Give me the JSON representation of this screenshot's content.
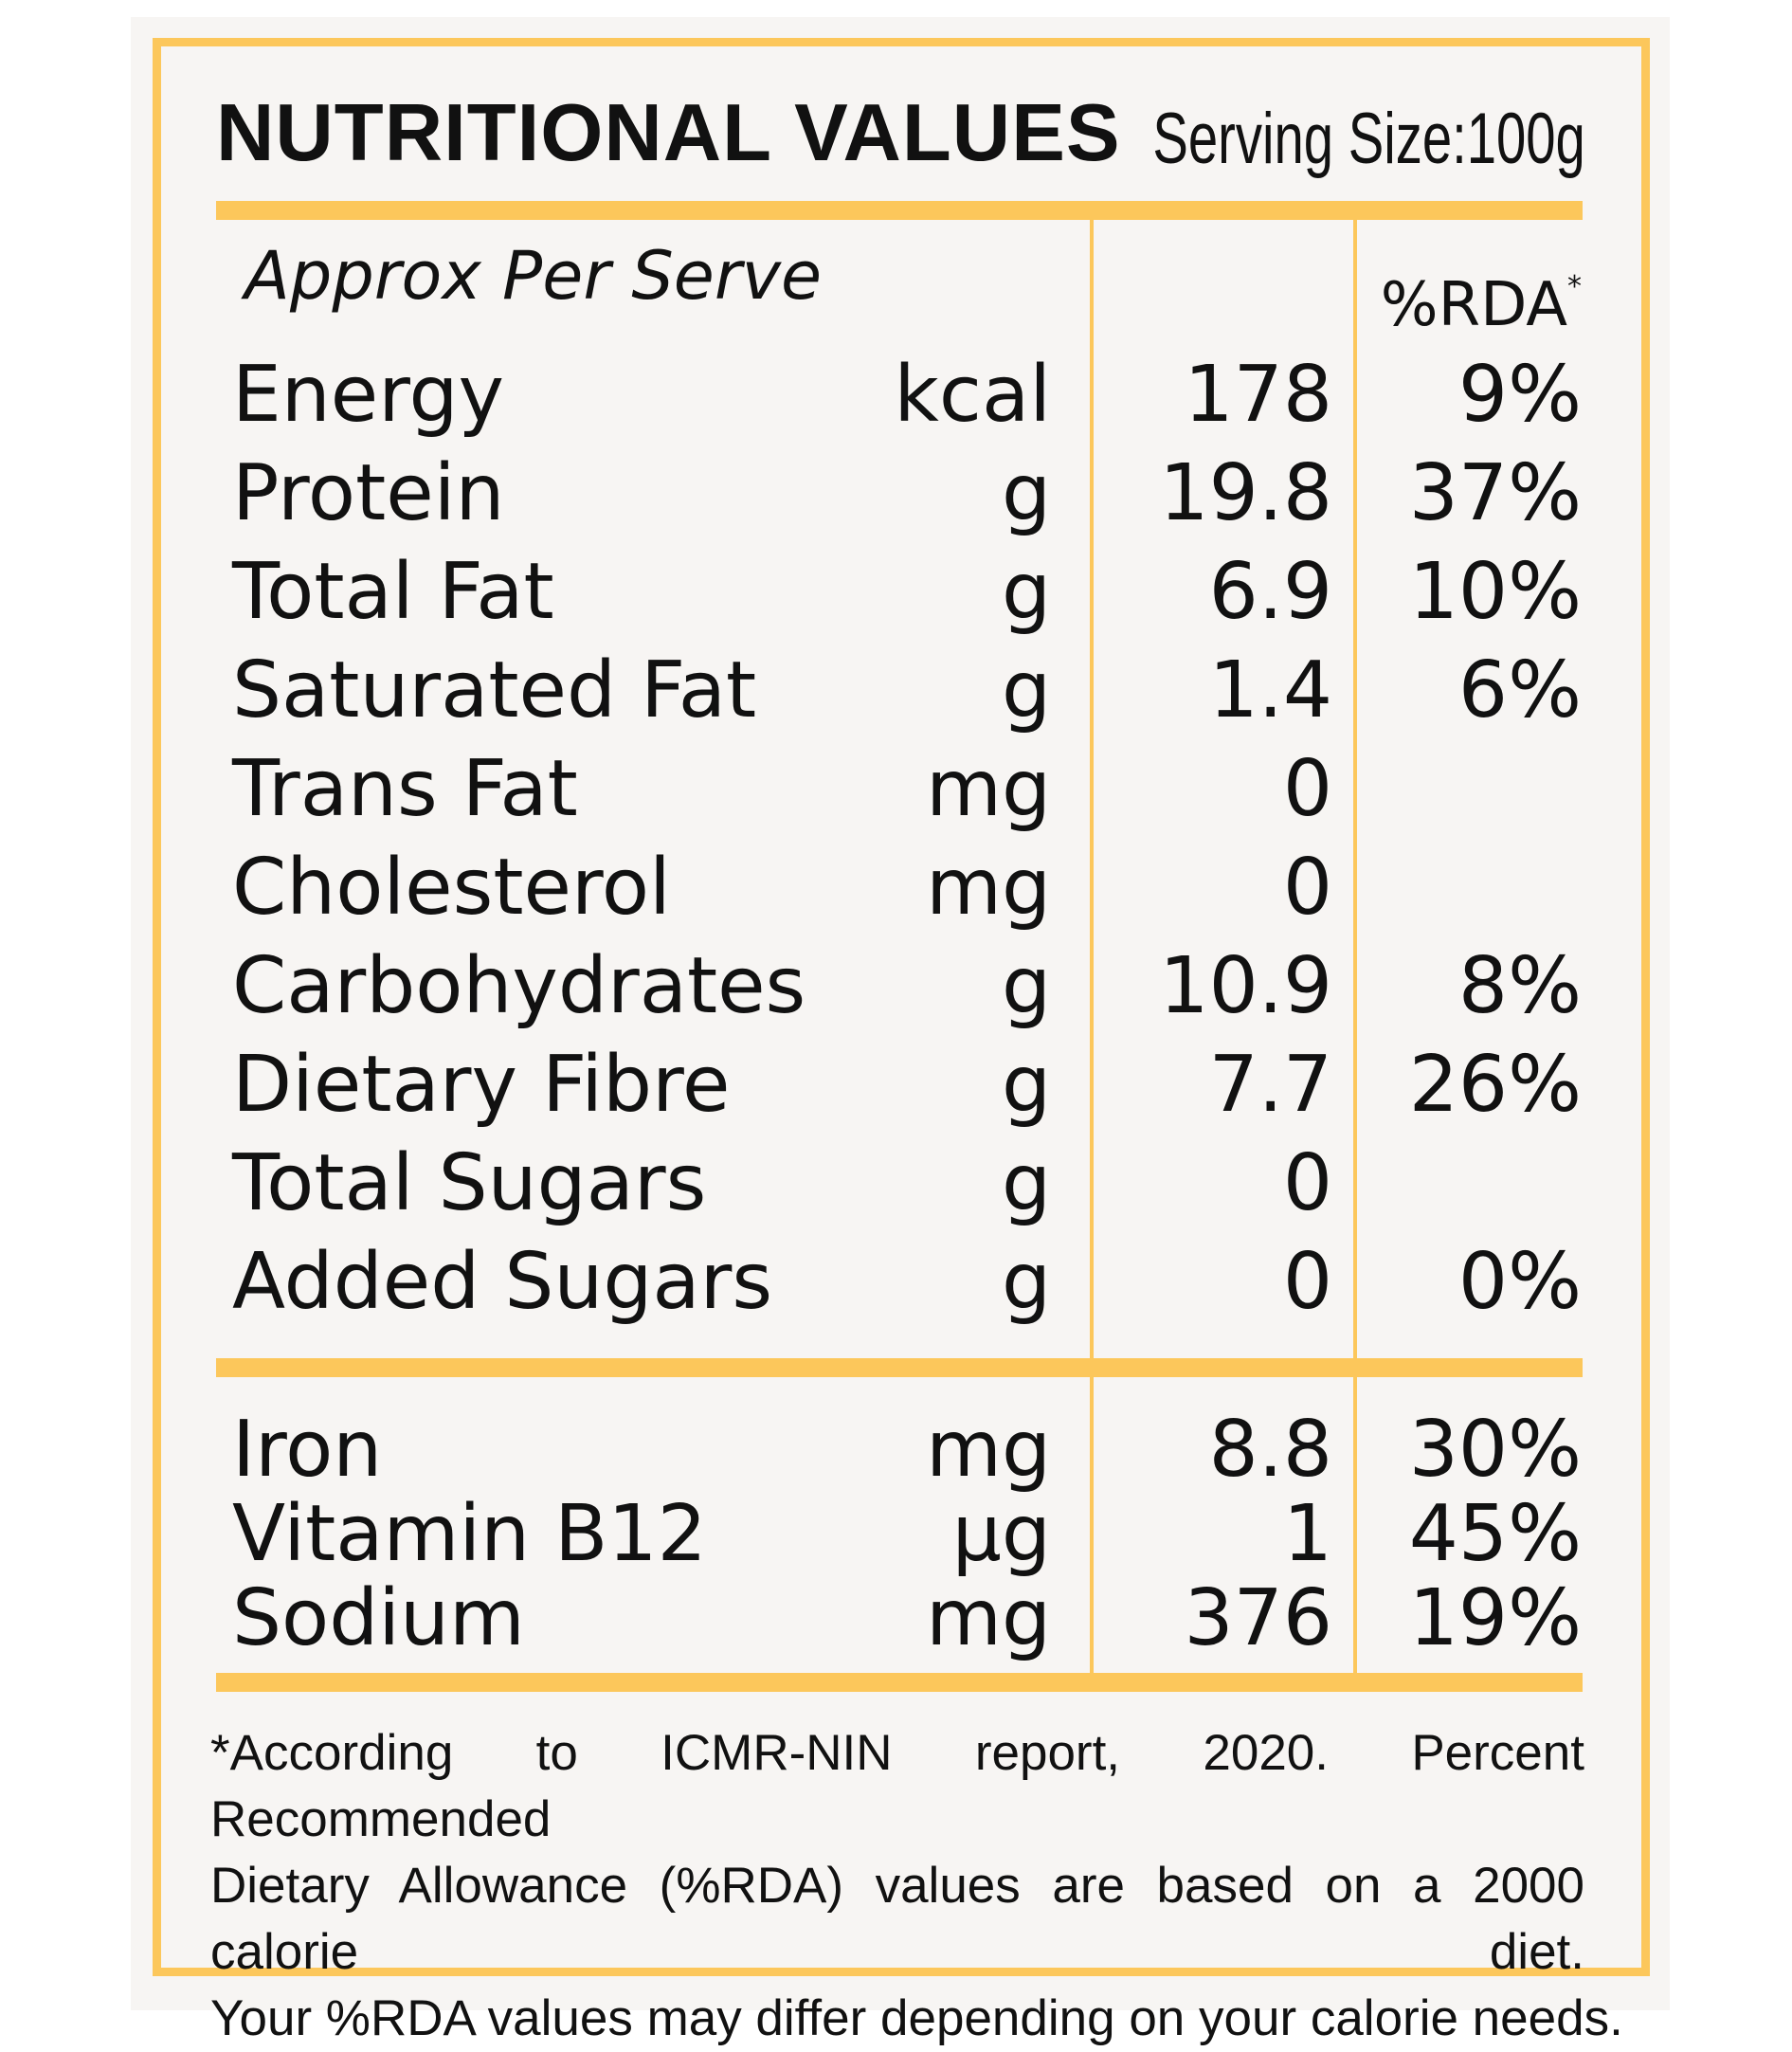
{
  "panel": {
    "title": "NUTRITIONAL VALUES",
    "serving_size": "Serving Size:100g",
    "subheading": "Approx Per Serve",
    "rda_header": "%RDA",
    "rda_marker": "*"
  },
  "nutrients": [
    {
      "name": "Energy",
      "unit": "kcal",
      "value": "178",
      "rda": "9%"
    },
    {
      "name": "Protein",
      "unit": "g",
      "value": "19.8",
      "rda": "37%"
    },
    {
      "name": "Total Fat",
      "unit": "g",
      "value": "6.9",
      "rda": "10%"
    },
    {
      "name": "Saturated Fat",
      "unit": "g",
      "value": "1.4",
      "rda": "6%"
    },
    {
      "name": "Trans Fat",
      "unit": "mg",
      "value": "0",
      "rda": ""
    },
    {
      "name": "Cholesterol",
      "unit": "mg",
      "value": "0",
      "rda": ""
    },
    {
      "name": "Carbohydrates",
      "unit": "g",
      "value": "10.9",
      "rda": "8%"
    },
    {
      "name": "Dietary Fibre",
      "unit": "g",
      "value": "7.7",
      "rda": "26%"
    },
    {
      "name": "Total Sugars",
      "unit": "g",
      "value": "0",
      "rda": ""
    },
    {
      "name": "Added Sugars",
      "unit": "g",
      "value": "0",
      "rda": "0%"
    }
  ],
  "minerals": [
    {
      "name": "Iron",
      "unit": "mg",
      "value": "8.8",
      "rda": "30%"
    },
    {
      "name": "Vitamin B12",
      "unit": "µg",
      "value": "1",
      "rda": "45%"
    },
    {
      "name": "Sodium",
      "unit": "mg",
      "value": "376",
      "rda": "19%"
    }
  ],
  "footnote": {
    "line1": "*According to ICMR-NIN report, 2020. Percent Recommended",
    "line2": "Dietary Allowance (%RDA) values are based on a 2000 calorie diet.",
    "line3": "Your %RDA values may differ depending on your calorie needs."
  },
  "colors": {
    "accent": "#fcc75b",
    "background": "#f7f5f3",
    "text": "#111111"
  }
}
